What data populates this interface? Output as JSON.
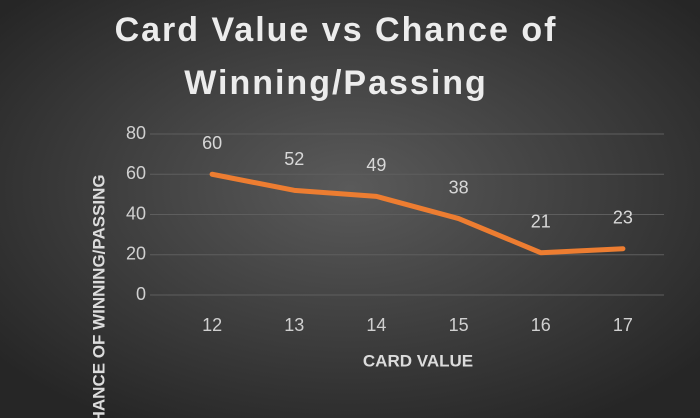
{
  "chart_data": {
    "type": "line",
    "title": [
      "Card Value vs Chance of",
      "Winning/Passing"
    ],
    "x_label": "CARD VALUE",
    "y_label": "CHANCE OF WINNING/PASSING",
    "categories": [
      "12",
      "13",
      "14",
      "15",
      "16",
      "17"
    ],
    "series": [
      {
        "name": "Chance of Winning/Passing",
        "color": "#ed7d31",
        "values": [
          60,
          52,
          49,
          38,
          21,
          23
        ]
      }
    ],
    "ylim": [
      0,
      80
    ],
    "yticks": [
      0,
      20,
      40,
      60,
      80
    ],
    "grid": true
  }
}
